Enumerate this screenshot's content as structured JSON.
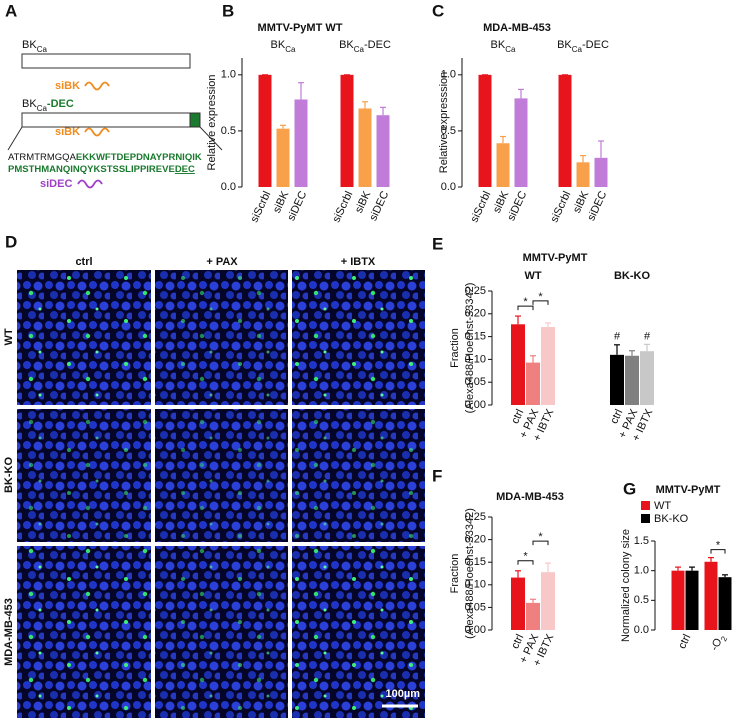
{
  "panel_a": {
    "letter": "A",
    "construct1": {
      "text": "BK",
      "sub": "Ca"
    },
    "sirna1": "siBK",
    "construct2": {
      "text": "BK",
      "sub": "Ca",
      "suffix": "-DEC"
    },
    "sirna2": "siBK",
    "sequence": [
      [
        "ATRMTRMGQA",
        "EKKWFTDEPDNAYPRNIQIK"
      ],
      [
        "PMSTHMANQINQYKSTSSLIPPIREVE",
        "DEC"
      ]
    ],
    "sirna3": "siDEC"
  },
  "panel_d": {
    "letter": "D",
    "columns": [
      "ctrl",
      "+ PAX",
      "+ IBTX"
    ],
    "rows": [
      "WT",
      "BK-KO",
      "MDA-MB-453"
    ],
    "scale_bar": "100µm"
  },
  "chart_data": [
    {
      "type": "bar",
      "panel": "B",
      "title": "MMTV-PyMT WT",
      "ylabel": [
        "Relative expression"
      ],
      "ylim": [
        0,
        1.15
      ],
      "yticks": [
        {
          "value": 0,
          "label": "0.0"
        },
        0.5,
        {
          "value": 1,
          "label": "1.0"
        }
      ],
      "categories": [
        "siScrbl",
        "siBK",
        "siDEC"
      ],
      "groups": [
        {
          "name": {
            "text": "BK",
            "sub": "Ca"
          },
          "colors": [
            "#e8141c",
            "#f8a04a",
            "#c07cd8"
          ],
          "values": [
            1.0,
            0.52,
            0.78
          ],
          "errors": [
            0,
            0.03,
            0.15
          ]
        },
        {
          "name": {
            "text": "BK",
            "sub": "Ca",
            "suffix": "-DEC"
          },
          "colors": [
            "#e8141c",
            "#f8a04a",
            "#c07cd8"
          ],
          "values": [
            1.0,
            0.7,
            0.64
          ],
          "errors": [
            0,
            0.06,
            0.07
          ]
        }
      ]
    },
    {
      "type": "bar",
      "panel": "C",
      "title": "MDA-MB-453",
      "ylabel": [
        "Relative expresssion"
      ],
      "ylim": [
        0,
        1.15
      ],
      "yticks": [
        {
          "value": 0,
          "label": "0.0"
        },
        0.5,
        {
          "value": 1,
          "label": "1.0"
        }
      ],
      "categories": [
        "siScrbl",
        "siBK",
        "siDEC"
      ],
      "groups": [
        {
          "name": {
            "text": "BK",
            "sub": "Ca"
          },
          "colors": [
            "#e8141c",
            "#f8a04a",
            "#c07cd8"
          ],
          "values": [
            1.0,
            0.39,
            0.79
          ],
          "errors": [
            0,
            0.06,
            0.08
          ]
        },
        {
          "name": {
            "text": "BK",
            "sub": "Ca",
            "suffix": "-DEC"
          },
          "colors": [
            "#e8141c",
            "#f8a04a",
            "#c07cd8"
          ],
          "values": [
            1.0,
            0.22,
            0.26
          ],
          "errors": [
            0,
            0.06,
            0.15
          ]
        }
      ]
    },
    {
      "type": "bar",
      "panel": "E",
      "title": "MMTV-PyMT",
      "ylabel": [
        "Fraction",
        "(Alexa488/Hoechst-33342)"
      ],
      "ylim": [
        0,
        0.25
      ],
      "yticks": [
        {
          "value": 0,
          "label": "0.00"
        },
        {
          "value": 0.05,
          "label": "0.05"
        },
        {
          "value": 0.1,
          "label": "0.10"
        },
        {
          "value": 0.15,
          "label": "0.15"
        },
        {
          "value": 0.2,
          "label": "0.20"
        },
        {
          "value": 0.25,
          "label": "0.25"
        }
      ],
      "categories": [
        "ctrl",
        "+ PAX",
        "+ IBTX"
      ],
      "groups": [
        {
          "name": "WT",
          "colors": [
            "#e8141c",
            "#f08080",
            "#f8c8c8"
          ],
          "values": [
            0.177,
            0.093,
            0.171
          ],
          "errors": [
            0.018,
            0.015,
            0.009
          ],
          "brackets": [
            "*",
            "*"
          ]
        },
        {
          "name": "BK-KO",
          "colors": [
            "#000000",
            "#808080",
            "#c8c8c8"
          ],
          "values": [
            0.11,
            0.108,
            0.118
          ],
          "errors": [
            0.022,
            0.011,
            0.015
          ],
          "markers": [
            "#",
            null,
            "#"
          ]
        }
      ]
    },
    {
      "type": "bar",
      "panel": "F",
      "title": "MDA-MB-453",
      "ylabel": [
        "Fraction",
        "(Alexa488/Hoechst-33342)"
      ],
      "ylim": [
        0,
        0.25
      ],
      "yticks": [
        {
          "value": 0,
          "label": "0.00"
        },
        {
          "value": 0.05,
          "label": "0.05"
        },
        {
          "value": 0.1,
          "label": "0.10"
        },
        {
          "value": 0.15,
          "label": "0.15"
        },
        {
          "value": 0.2,
          "label": "0.20"
        },
        {
          "value": 0.25,
          "label": "0.25"
        }
      ],
      "categories": [
        "ctrl",
        "+ PAX",
        "+ IBTX"
      ],
      "groups": [
        {
          "colors": [
            "#e8141c",
            "#f08080",
            "#f8c8c8"
          ],
          "values": [
            0.116,
            0.06,
            0.128
          ],
          "errors": [
            0.015,
            0.008,
            0.02
          ],
          "brackets": [
            "*",
            "*"
          ]
        }
      ]
    },
    {
      "type": "bar",
      "panel": "G",
      "title": "MMTV-PyMT",
      "ylabel": [
        "Normalized colony size"
      ],
      "ylim": [
        0,
        1.5
      ],
      "yticks": [
        {
          "value": 0,
          "label": "0.0"
        },
        0.5,
        {
          "value": 1,
          "label": "1.0"
        },
        1.5
      ],
      "categories": [
        "ctrl",
        {
          "text": "-O",
          "sub": "2"
        }
      ],
      "series": [
        {
          "name": "WT",
          "color": "#e8141c",
          "values": [
            1.0,
            1.15
          ],
          "errors": [
            0.06,
            0.07
          ]
        },
        {
          "name": "BK-KO",
          "color": "#000000",
          "values": [
            1.0,
            0.89
          ],
          "errors": [
            0.06,
            0.04
          ]
        }
      ],
      "brackets": [
        null,
        "*"
      ]
    }
  ]
}
